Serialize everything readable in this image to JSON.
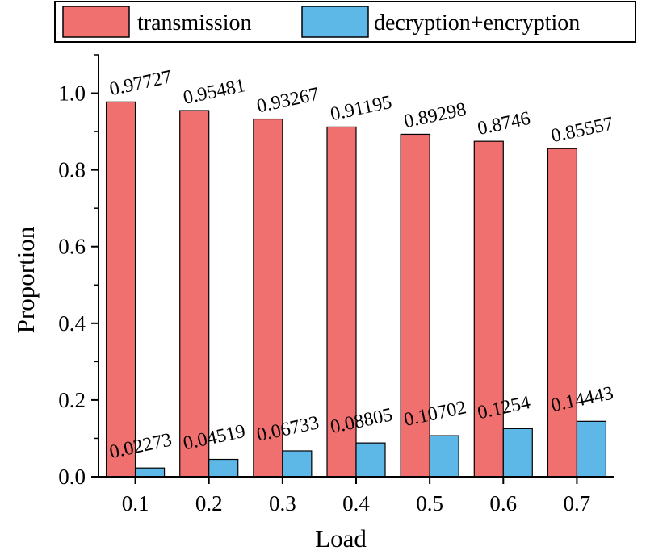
{
  "chart_data": {
    "type": "bar",
    "title": "",
    "xlabel": "Load",
    "ylabel": "Proportion",
    "categories": [
      "0.1",
      "0.2",
      "0.3",
      "0.4",
      "0.5",
      "0.6",
      "0.7"
    ],
    "ylim": [
      0,
      1.1
    ],
    "yticks": [
      "0.0",
      "0.2",
      "0.4",
      "0.6",
      "0.8",
      "1.0"
    ],
    "grid": false,
    "legend_position": "top",
    "series": [
      {
        "name": "transmission",
        "color": "#f07070",
        "values": [
          0.97727,
          0.95481,
          0.93267,
          0.91195,
          0.89298,
          0.8746,
          0.85557
        ],
        "labels": [
          "0.97727",
          "0.95481",
          "0.93267",
          "0.91195",
          "0.89298",
          "0.8746",
          "0.85557"
        ]
      },
      {
        "name": "decryption+encryption",
        "color": "#5db8e8",
        "values": [
          0.02273,
          0.04519,
          0.06733,
          0.08805,
          0.10702,
          0.1254,
          0.14443
        ],
        "labels": [
          "0.02273",
          "0.04519",
          "0.06733",
          "0.08805",
          "0.10702",
          "0.1254",
          "0.14443"
        ]
      }
    ]
  }
}
